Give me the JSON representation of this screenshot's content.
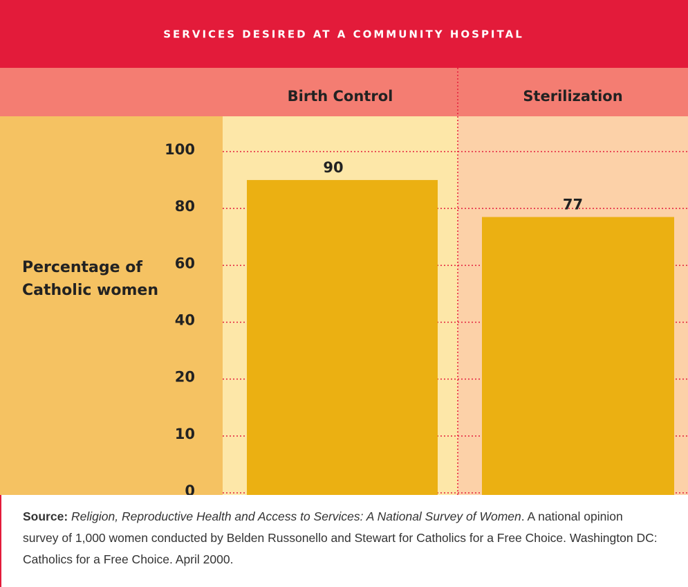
{
  "chart_data": {
    "type": "bar",
    "title": "SERVICES DESIRED AT A COMMUNITY HOSPITAL",
    "y_label": "Percentage of Catholic women",
    "categories": [
      "Birth Control",
      "Sterilization"
    ],
    "values": [
      90,
      77
    ],
    "color": "#ebb012",
    "ylim": [
      0,
      100
    ],
    "yticks": [
      0,
      10,
      20,
      40,
      60,
      80,
      100
    ],
    "grid": true,
    "source": {
      "label": "Source:",
      "title": "Religion, Reproductive Health and Access to Services: A National Survey of Women",
      "text": ". A national opinion survey of 1,000 women conducted by Belden Russonello and Stewart for Catholics for a Free Choice. Washington DC: Catholics for a Free Choice. April 2000."
    }
  }
}
